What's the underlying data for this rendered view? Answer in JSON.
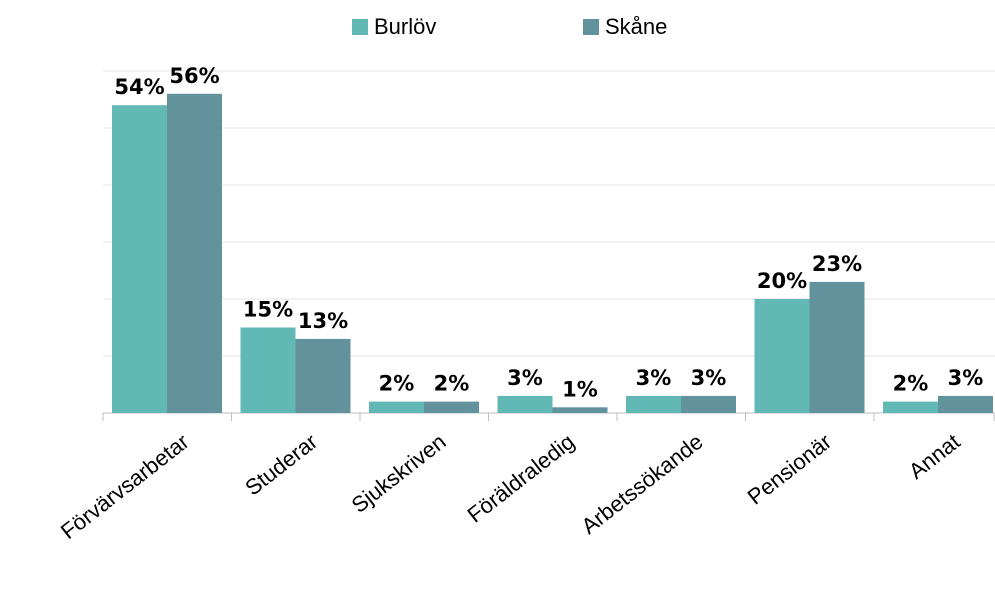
{
  "chart_data": {
    "type": "bar",
    "categories": [
      "Förvärvsarbetar",
      "Studerar",
      "Sjukskriven",
      "Föräldraledig",
      "Arbetssökande",
      "Pensionär",
      "Annat"
    ],
    "series": [
      {
        "name": "Burlöv",
        "color": "#62b8b4",
        "values": [
          54,
          15,
          2,
          3,
          3,
          20,
          2
        ],
        "value_labels": [
          "54%",
          "15%",
          "2%",
          "3%",
          "3%",
          "20%",
          "2%"
        ]
      },
      {
        "name": "Skåne",
        "color": "#62939c",
        "values": [
          56,
          13,
          2,
          1,
          3,
          23,
          3
        ],
        "value_labels": [
          "56%",
          "13%",
          "2%",
          "1%",
          "3%",
          "23%",
          "3%"
        ]
      }
    ],
    "ylim": [
      0,
      60
    ],
    "yticks": [
      0,
      10,
      20,
      30,
      40,
      50,
      60
    ],
    "grid": true,
    "legend": "top"
  }
}
